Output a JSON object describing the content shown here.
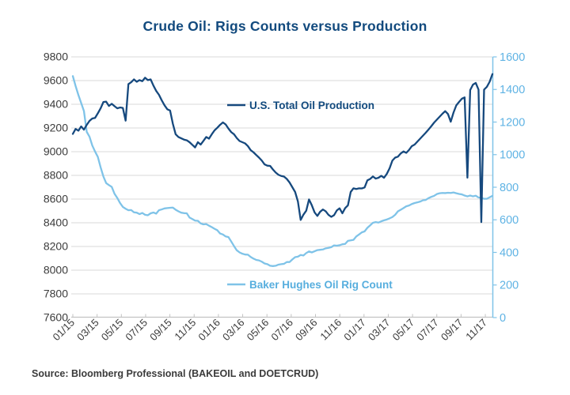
{
  "source_note": "Source: Bloomberg Professional (BAKEOIL and DOETCRUD)",
  "colors": {
    "title": "#124a7e",
    "production_line": "#16497e",
    "rig_line": "#7fc3e8",
    "rig_axis_text": "#5fb3e4",
    "axis_text": "#3c3c3c",
    "gridline": "#dadada",
    "axis_line": "#c3c3c3"
  },
  "chart_data": {
    "type": "line",
    "title": "Crude Oil: Rigs Counts versus Production",
    "frequency": "weekly",
    "grid": "horizontal-only",
    "legend_position": "inline-annotations",
    "x_tick_labels": [
      "01/15",
      "03/15",
      "05/15",
      "07/15",
      "09/15",
      "11/15",
      "01/16",
      "03/16",
      "05/16",
      "07/16",
      "09/16",
      "11/16",
      "01/17",
      "03/17",
      "05/17",
      "07/17",
      "09/17",
      "11/17"
    ],
    "left_axis": {
      "series": "U.S. Total Oil Production",
      "min": 7600,
      "max": 9800,
      "step": 200,
      "ticks": [
        9800,
        9600,
        9400,
        9200,
        9000,
        8800,
        8600,
        8400,
        8200,
        8000,
        7800,
        7600
      ]
    },
    "right_axis": {
      "series": "Baker Hughes Oil Rig Count",
      "min": 0,
      "max": 1600,
      "step": 200,
      "ticks": [
        1600,
        1400,
        1200,
        1000,
        800,
        600,
        400,
        200,
        0
      ]
    },
    "series": [
      {
        "name": "U.S. Total Oil Production",
        "axis": "left",
        "color": "#16497e",
        "values": [
          9150,
          9192,
          9177,
          9213,
          9186,
          9226,
          9260,
          9280,
          9285,
          9324,
          9366,
          9419,
          9422,
          9386,
          9404,
          9384,
          9366,
          9373,
          9369,
          9262,
          9570,
          9586,
          9610,
          9590,
          9604,
          9595,
          9624,
          9604,
          9610,
          9558,
          9513,
          9480,
          9433,
          9391,
          9358,
          9347,
          9235,
          9147,
          9124,
          9113,
          9102,
          9096,
          9080,
          9058,
          9036,
          9080,
          9060,
          9091,
          9124,
          9110,
          9147,
          9180,
          9202,
          9227,
          9247,
          9230,
          9195,
          9165,
          9147,
          9115,
          9090,
          9080,
          9070,
          9047,
          9013,
          8995,
          8972,
          8950,
          8925,
          8893,
          8882,
          8880,
          8850,
          8824,
          8805,
          8795,
          8790,
          8770,
          8740,
          8700,
          8660,
          8580,
          8424,
          8469,
          8502,
          8597,
          8548,
          8488,
          8458,
          8493,
          8512,
          8497,
          8467,
          8450,
          8464,
          8504,
          8522,
          8480,
          8524,
          8547,
          8660,
          8691,
          8685,
          8691,
          8690,
          8698,
          8758,
          8770,
          8791,
          8773,
          8780,
          8796,
          8780,
          8813,
          8860,
          8925,
          8950,
          8958,
          8985,
          9002,
          8990,
          9015,
          9047,
          9060,
          9085,
          9110,
          9135,
          9160,
          9187,
          9215,
          9245,
          9270,
          9295,
          9320,
          9342,
          9318,
          9253,
          9330,
          9391,
          9420,
          9447,
          9458,
          8781,
          9520,
          9566,
          9580,
          9524,
          8406,
          9524,
          9547,
          9590,
          9655
        ]
      },
      {
        "name": "Baker Hughes Oil Rig Count",
        "axis": "right",
        "color": "#7fc3e8",
        "values": [
          1482,
          1421,
          1366,
          1317,
          1267,
          1140,
          1110,
          1056,
          1019,
          986,
          922,
          866,
          825,
          813,
          802,
          760,
          734,
          703,
          679,
          668,
          659,
          660,
          646,
          644,
          635,
          642,
          631,
          628,
          640,
          645,
          638,
          659,
          664,
          670,
          672,
          674,
          675,
          662,
          652,
          644,
          641,
          640,
          614,
          605,
          595,
          594,
          578,
          572,
          574,
          564,
          555,
          545,
          536,
          516,
          510,
          498,
          494,
          467,
          439,
          413,
          400,
          392,
          387,
          386,
          372,
          362,
          354,
          351,
          343,
          332,
          328,
          318,
          316,
          318,
          325,
          328,
          330,
          341,
          341,
          357,
          371,
          374,
          384,
          381,
          396,
          406,
          400,
          407,
          414,
          416,
          418,
          425,
          428,
          432,
          443,
          441,
          444,
          450,
          452,
          471,
          474,
          477,
          498,
          510,
          523,
          529,
          551,
          566,
          582,
          586,
          583,
          591,
          597,
          602,
          609,
          617,
          631,
          652,
          662,
          672,
          683,
          688,
          697,
          703,
          707,
          712,
          720,
          722,
          733,
          741,
          747,
          758,
          763,
          765,
          764,
          766,
          765,
          768,
          763,
          759,
          756,
          749,
          744,
          749,
          744,
          748,
          737,
          736,
          729,
          729,
          738,
          747
        ]
      }
    ]
  }
}
